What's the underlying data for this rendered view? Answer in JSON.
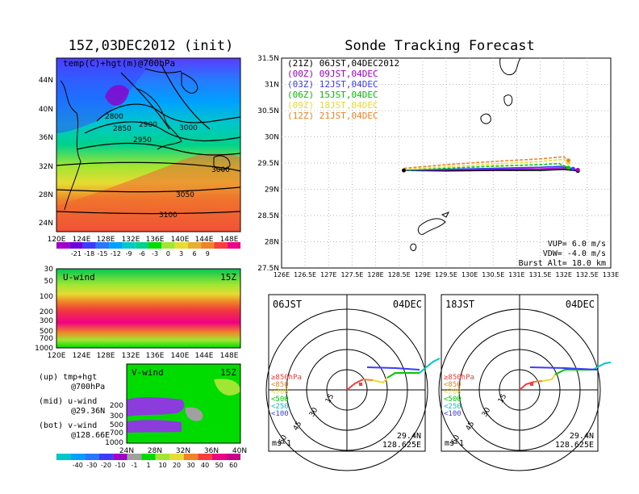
{
  "init_title": "15Z,03DEC2012 (init)",
  "main_title": "Sonde Tracking Forecast",
  "map700": {
    "label": "temp(C)+hgt(m)@700hPa",
    "lat_labels": [
      "44N",
      "40N",
      "36N",
      "32N",
      "28N",
      "24N"
    ],
    "lon_labels": [
      "120E",
      "124E",
      "128E",
      "132E",
      "136E",
      "140E",
      "144E",
      "148E"
    ],
    "contour_labels": [
      "2800",
      "2850",
      "2900",
      "2950",
      "3000",
      "3000",
      "3050",
      "3100"
    ],
    "colorbar_labels": [
      "-21",
      "-18",
      "-15",
      "-12",
      "-9",
      "-6",
      "-3",
      "0",
      "3",
      "6",
      "9"
    ],
    "colorbar_colors": [
      "#a000c8",
      "#6e00dc",
      "#3c3cff",
      "#2878ff",
      "#00a0ff",
      "#00c8c8",
      "#00d28c",
      "#00dc00",
      "#a0e632",
      "#e6dc32",
      "#e6af2d",
      "#f08228",
      "#fa3c3c",
      "#f00082"
    ]
  },
  "uwind": {
    "label": "U-wind",
    "time": "15Z",
    "p_labels": [
      "30",
      "50",
      "100",
      "200",
      "300",
      "500",
      "700",
      "1000"
    ],
    "lon_labels": [
      "120E",
      "124E",
      "128E",
      "132E",
      "136E",
      "140E",
      "144E",
      "148E"
    ]
  },
  "vwind": {
    "label": "V-wind",
    "time": "15Z",
    "p_labels": [
      "200",
      "300",
      "500",
      "700",
      "1000"
    ],
    "lat_labels": [
      "24N",
      "28N",
      "32N",
      "36N",
      "40N"
    ]
  },
  "legend_left": {
    "l1a": "(up) tmp+hgt",
    "l1b": "@700hPa",
    "l2a": "(mid) u-wind",
    "l2b": "@29.36N",
    "l3a": "(bot) v-wind",
    "l3b": "@128.66E"
  },
  "wind_colorbar_labels": [
    "-40",
    "-30",
    "-20",
    "-10",
    "-1",
    "1",
    "10",
    "20",
    "30",
    "40",
    "50",
    "60"
  ],
  "wind_colorbar_colors": [
    "#00c8c8",
    "#00a0ff",
    "#2878ff",
    "#3c3cff",
    "#a000c8",
    "#a0a0a0",
    "#00dc00",
    "#a0e632",
    "#e6dc32",
    "#f08228",
    "#fa3c3c",
    "#f00082",
    "#c8008c"
  ],
  "tracks": {
    "runs": [
      {
        "label": "(21Z) 06JST,04DEC2012",
        "color": "#000000"
      },
      {
        "label": "(00Z) 09JST,04DEC",
        "color": "#a000c8"
      },
      {
        "label": "(03Z) 12JST,04DEC",
        "color": "#3c3cff"
      },
      {
        "label": "(06Z) 15JST,04DEC",
        "color": "#00c800"
      },
      {
        "label": "(09Z) 18JST,04DEC",
        "color": "#e6dc32"
      },
      {
        "label": "(12Z) 21JST,04DEC",
        "color": "#f08228"
      }
    ],
    "lat_labels": [
      "31.5N",
      "31N",
      "30.5N",
      "30N",
      "29.5N",
      "29N",
      "28.5N",
      "28N",
      "27.5N"
    ],
    "lon_labels": [
      "126E",
      "126.5E",
      "127E",
      "127.5E",
      "128E",
      "128.5E",
      "129E",
      "129.5E",
      "130E",
      "130.5E",
      "131E",
      "131.5E",
      "132E",
      "132.5E",
      "133E"
    ],
    "vup": "VUP=  6.0 m/s",
    "vdw": "VDW= -4.0 m/s",
    "burst": "Burst Alt= 18.0 km"
  },
  "hodo_left": {
    "time": "06JST",
    "date": "04DEC",
    "lat": "29.4N",
    "lon": "128.625E",
    "unit": "ms-1"
  },
  "hodo_right": {
    "time": "18JST",
    "date": "04DEC",
    "lat": "29.4N",
    "lon": "128.625E",
    "unit": "ms-1"
  },
  "hodo_rings": [
    "15",
    "30",
    "45",
    "60"
  ],
  "hodo_levels": [
    {
      "label": "≥850hPa",
      "color": "#fa3c3c"
    },
    {
      "label": "<850",
      "color": "#f08228"
    },
    {
      "label": "<700",
      "color": "#e6dc32"
    },
    {
      "label": "<500",
      "color": "#00c800"
    },
    {
      "label": "<250",
      "color": "#00c8c8"
    },
    {
      "label": "<100",
      "color": "#3c3cff"
    }
  ],
  "chart_data": [
    {
      "type": "line",
      "title": "Sonde Tracking Forecast",
      "xlim": [
        126,
        133
      ],
      "ylim": [
        27.5,
        31.5
      ],
      "series": [
        {
          "name": "(21Z) 06JST,04DEC2012",
          "x": [
            128.6,
            129.5,
            130.5,
            131.5,
            132.0,
            132.3
          ],
          "y": [
            29.36,
            29.35,
            29.36,
            29.36,
            29.38,
            29.35
          ]
        },
        {
          "name": "(00Z) 09JST,04DEC",
          "x": [
            128.6,
            129.5,
            130.5,
            131.5,
            132.0,
            132.3
          ],
          "y": [
            29.36,
            29.37,
            29.38,
            29.39,
            29.41,
            29.37
          ]
        },
        {
          "name": "(03Z) 12JST,04DEC",
          "x": [
            128.6,
            129.5,
            130.5,
            131.5,
            132.0,
            132.2
          ],
          "y": [
            29.36,
            29.38,
            29.4,
            29.42,
            29.44,
            29.39
          ]
        },
        {
          "name": "(06Z) 15JST,04DEC",
          "x": [
            128.6,
            129.5,
            130.5,
            131.5,
            131.9,
            132.1
          ],
          "y": [
            29.36,
            29.4,
            29.44,
            29.47,
            29.49,
            29.41
          ]
        },
        {
          "name": "(09Z) 18JST,04DEC",
          "x": [
            128.6,
            129.5,
            130.5,
            131.5,
            132.0,
            132.1
          ],
          "y": [
            29.38,
            29.43,
            29.48,
            29.53,
            29.57,
            29.5
          ]
        },
        {
          "name": "(12Z) 21JST,04DEC",
          "x": [
            128.6,
            129.5,
            130.5,
            131.5,
            132.0,
            132.1
          ],
          "y": [
            29.4,
            29.47,
            29.53,
            29.58,
            29.62,
            29.55
          ]
        }
      ]
    }
  ]
}
